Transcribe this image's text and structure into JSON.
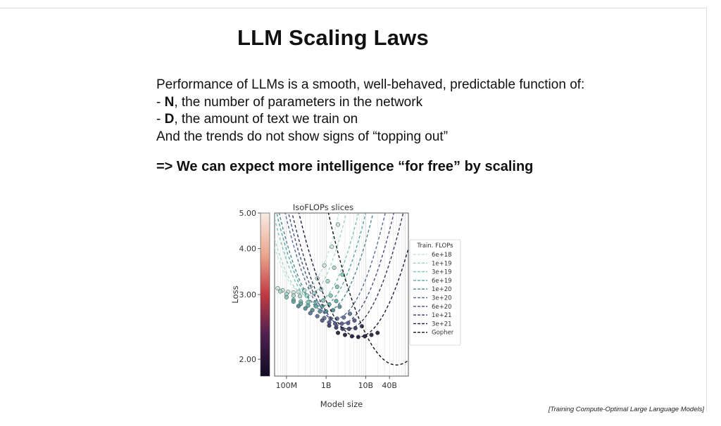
{
  "slide": {
    "title": "LLM Scaling Laws",
    "intro": "Performance of LLMs is a smooth, well-behaved, predictable function of:",
    "bullets": [
      {
        "prefix": "- ",
        "bold": "N",
        "rest": ", the number of parameters in the network"
      },
      {
        "prefix": "- ",
        "bold": "D",
        "rest": ", the amount of text we train on"
      }
    ],
    "trend": "And the trends do not show signs of “topping out”",
    "conclusion": "=> We can expect more intelligence “for free” by scaling",
    "citation": "[Training Compute-Optimal Large Language Models]"
  },
  "chart_data": {
    "type": "scatter",
    "title": "IsoFLOPs slices",
    "xlabel": "Model size",
    "ylabel": "Loss",
    "xscale": "log",
    "yscale": "log",
    "xlim": [
      50000000,
      120000000000
    ],
    "ylim": [
      1.8,
      5.0
    ],
    "x_ticks": [
      {
        "value": 100000000,
        "label": "100M"
      },
      {
        "value": 1000000000,
        "label": "1B"
      },
      {
        "value": 10000000000,
        "label": "10B"
      },
      {
        "value": 40000000000,
        "label": "40B"
      }
    ],
    "y_ticks": [
      {
        "value": 2.0,
        "label": "2.00"
      },
      {
        "value": 3.0,
        "label": "3.00"
      },
      {
        "value": 4.0,
        "label": "4.00"
      },
      {
        "value": 5.0,
        "label": "5.00"
      }
    ],
    "colorbar": true,
    "legend_title": "Train. FLOPs",
    "legend_position": "right",
    "series": [
      {
        "name": "6e+18",
        "color": "#c8e6dc",
        "curve": {
          "x_opt": 250000000,
          "loss_min": 3.05,
          "k": 0.25
        },
        "points": [
          [
            60000000,
            3.12
          ],
          [
            80000000,
            3.08
          ],
          [
            110000000,
            3.05
          ],
          [
            150000000,
            3.04
          ],
          [
            200000000,
            3.05
          ],
          [
            280000000,
            3.08
          ],
          [
            400000000,
            3.15
          ],
          [
            600000000,
            3.32
          ],
          [
            900000000,
            3.6
          ],
          [
            1400000000,
            4.05
          ],
          [
            2000000000,
            4.65
          ]
        ]
      },
      {
        "name": "1e+19",
        "color": "#a4d6c9",
        "curve": {
          "x_opt": 330000000,
          "loss_min": 2.98,
          "k": 0.23
        },
        "points": [
          [
            70000000,
            3.06
          ],
          [
            100000000,
            3.01
          ],
          [
            150000000,
            2.98
          ],
          [
            220000000,
            2.97
          ],
          [
            330000000,
            2.98
          ],
          [
            500000000,
            3.02
          ],
          [
            750000000,
            3.1
          ],
          [
            1100000000,
            3.26
          ],
          [
            1600000000,
            3.55
          ]
        ]
      },
      {
        "name": "3e+19",
        "color": "#7dc3b5",
        "curve": {
          "x_opt": 550000000,
          "loss_min": 2.86,
          "k": 0.21
        },
        "points": [
          [
            100000000,
            2.95
          ],
          [
            150000000,
            2.9
          ],
          [
            230000000,
            2.87
          ],
          [
            350000000,
            2.86
          ],
          [
            550000000,
            2.86
          ],
          [
            850000000,
            2.89
          ],
          [
            1300000000,
            2.98
          ],
          [
            1900000000,
            3.15
          ],
          [
            2600000000,
            3.4
          ]
        ]
      },
      {
        "name": "6e+19",
        "color": "#5aa8a0",
        "curve": {
          "x_opt": 750000000,
          "loss_min": 2.79,
          "k": 0.2
        },
        "points": [
          [
            150000000,
            2.87
          ],
          [
            230000000,
            2.83
          ],
          [
            350000000,
            2.8
          ],
          [
            550000000,
            2.79
          ],
          [
            800000000,
            2.79
          ],
          [
            1200000000,
            2.82
          ],
          [
            1800000000,
            2.88
          ]
        ]
      },
      {
        "name": "1e+20",
        "color": "#4c8a8f",
        "curve": {
          "x_opt": 1000000000,
          "loss_min": 2.7,
          "k": 0.19
        },
        "points": [
          [
            200000000,
            2.79
          ],
          [
            300000000,
            2.75
          ],
          [
            450000000,
            2.72
          ],
          [
            700000000,
            2.7
          ],
          [
            1000000000,
            2.7
          ],
          [
            1500000000,
            2.72
          ],
          [
            2200000000,
            2.78
          ]
        ]
      },
      {
        "name": "3e+20",
        "color": "#5a6a96",
        "curve": {
          "x_opt": 1700000000,
          "loss_min": 2.58,
          "k": 0.18
        },
        "points": [
          [
            400000000,
            2.67
          ],
          [
            600000000,
            2.62
          ],
          [
            900000000,
            2.59
          ],
          [
            1300000000,
            2.58
          ],
          [
            1900000000,
            2.58
          ],
          [
            2800000000,
            2.6
          ],
          [
            4000000000,
            2.66
          ]
        ]
      },
      {
        "name": "6e+20",
        "color": "#4a4f84",
        "curve": {
          "x_opt": 2400000000,
          "loss_min": 2.5,
          "k": 0.17
        },
        "points": [
          [
            800000000,
            2.55
          ],
          [
            1200000000,
            2.52
          ],
          [
            1700000000,
            2.5
          ],
          [
            2500000000,
            2.5
          ],
          [
            3600000000,
            2.51
          ],
          [
            5200000000,
            2.55
          ]
        ]
      },
      {
        "name": "1e+21",
        "color": "#33365e",
        "curve": {
          "x_opt": 3500000000,
          "loss_min": 2.42,
          "k": 0.16
        },
        "points": [
          [
            1200000000,
            2.47
          ],
          [
            1800000000,
            2.44
          ],
          [
            2600000000,
            2.42
          ],
          [
            3800000000,
            2.42
          ],
          [
            5500000000,
            2.43
          ],
          [
            8000000000,
            2.46
          ]
        ]
      },
      {
        "name": "3e+21",
        "color": "#1c1b33",
        "curve": {
          "x_opt": 6500000000,
          "loss_min": 2.3,
          "k": 0.15
        },
        "points": [
          [
            2000000000,
            2.36
          ],
          [
            3000000000,
            2.33
          ],
          [
            4500000000,
            2.31
          ],
          [
            6500000000,
            2.3
          ],
          [
            9500000000,
            2.31
          ],
          [
            14000000000,
            2.33
          ],
          [
            20000000000,
            2.36
          ]
        ]
      },
      {
        "name": "Gopher",
        "color": "#111111",
        "curve": {
          "x_opt": 60000000000,
          "loss_min": 1.93,
          "k": 0.14
        },
        "points": []
      }
    ]
  }
}
